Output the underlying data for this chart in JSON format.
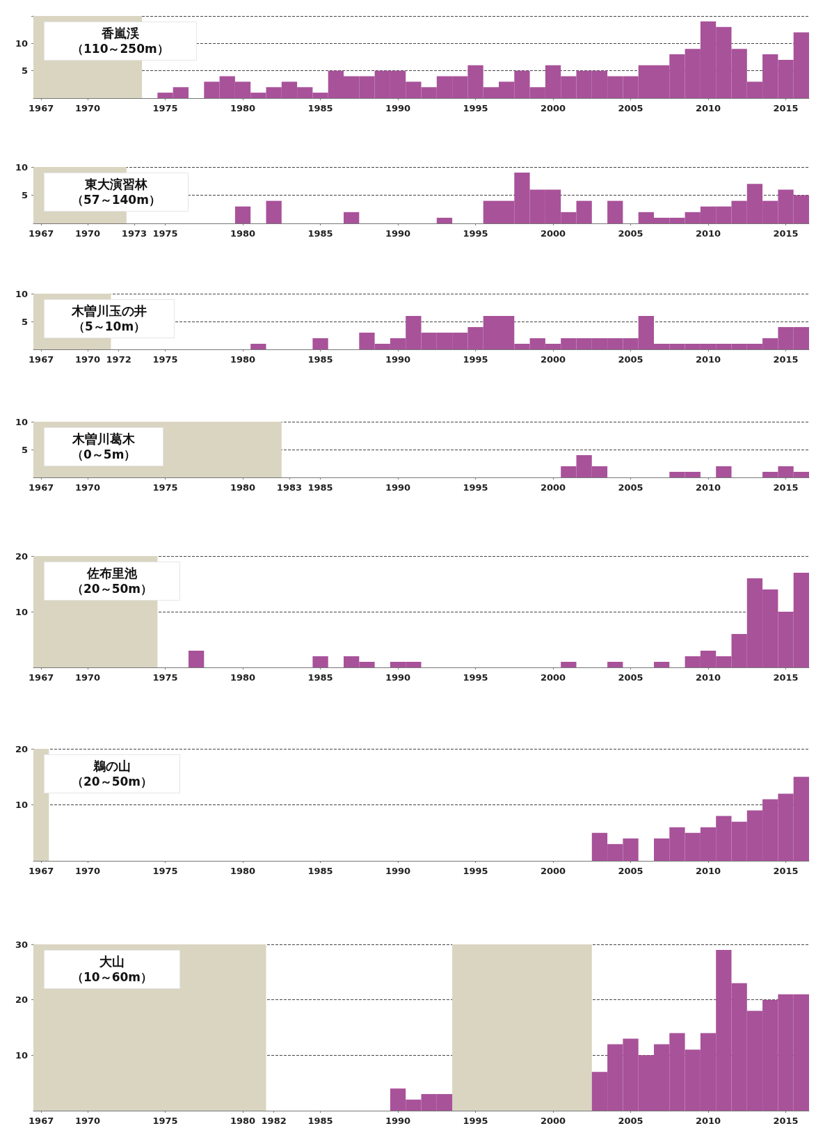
{
  "chart_data": [
    {
      "type": "bar",
      "title": "香嵐渓",
      "subtitle": "（110～250m）",
      "color": "#a8529a",
      "x": [
        1975,
        1976,
        1978,
        1979,
        1980,
        1981,
        1982,
        1983,
        1984,
        1985,
        1986,
        1987,
        1988,
        1989,
        1990,
        1991,
        1992,
        1993,
        1994,
        1995,
        1996,
        1997,
        1998,
        1999,
        2000,
        2001,
        2002,
        2003,
        2004,
        2005,
        2006,
        2007,
        2008,
        2009,
        2010,
        2011,
        2012,
        2013,
        2014,
        2015,
        2016
      ],
      "values": [
        1,
        2,
        3,
        4,
        3,
        1,
        2,
        3,
        2,
        1,
        5,
        4,
        4,
        5,
        5,
        3,
        2,
        4,
        4,
        6,
        2,
        3,
        5,
        2,
        6,
        4,
        5,
        5,
        4,
        4,
        6,
        6,
        8,
        9,
        14,
        13,
        9,
        3,
        8,
        7,
        12
      ],
      "xlim": [
        1966.5,
        2016.5
      ],
      "xticks": [
        1967,
        1970,
        1975,
        1980,
        1985,
        1990,
        1995,
        2000,
        2005,
        2010,
        2015
      ],
      "ylim": [
        0,
        15
      ],
      "yticks": [
        5,
        10,
        {
          "value": 15,
          "label": null
        }
      ],
      "grid": "y",
      "bands": [
        {
          "axis": "x",
          "from": 1966.5,
          "to": 1973.5,
          "color": "#d9d5c1"
        }
      ]
    },
    {
      "type": "bar",
      "title": "東大演習林",
      "subtitle": "（57～140m）",
      "color": "#a8529a",
      "x": [
        1980,
        1982,
        1987,
        1993,
        1996,
        1997,
        1998,
        1999,
        2000,
        2001,
        2002,
        2004,
        2006,
        2007,
        2008,
        2009,
        2010,
        2011,
        2012,
        2013,
        2014,
        2015,
        2016
      ],
      "values": [
        3,
        4,
        2,
        1,
        4,
        4,
        9,
        6,
        6,
        2,
        4,
        4,
        2,
        1,
        1,
        2,
        3,
        3,
        4,
        7,
        4,
        6,
        5
      ],
      "xlim": [
        1966.5,
        2016.5
      ],
      "xticks": [
        1967,
        1970,
        1973,
        1975,
        1980,
        1985,
        1990,
        1995,
        2000,
        2005,
        2010,
        2015
      ],
      "ylim": [
        0,
        10
      ],
      "yticks": [
        5,
        10
      ],
      "grid": "y",
      "bands": [
        {
          "axis": "x",
          "from": 1966.5,
          "to": 1972.5,
          "color": "#d9d5c1"
        }
      ]
    },
    {
      "type": "bar",
      "title": "木曽川玉の井",
      "subtitle": "（5～10m）",
      "color": "#a8529a",
      "x": [
        1981,
        1985,
        1988,
        1989,
        1990,
        1991,
        1992,
        1993,
        1994,
        1995,
        1996,
        1997,
        1998,
        1999,
        2000,
        2001,
        2002,
        2003,
        2004,
        2005,
        2006,
        2007,
        2008,
        2009,
        2010,
        2011,
        2012,
        2013,
        2014,
        2015,
        2016
      ],
      "values": [
        1,
        2,
        3,
        1,
        2,
        6,
        3,
        3,
        3,
        4,
        6,
        6,
        1,
        2,
        1,
        2,
        2,
        2,
        2,
        2,
        6,
        1,
        1,
        1,
        1,
        1,
        1,
        1,
        2,
        4,
        4
      ],
      "xlim": [
        1966.5,
        2016.5
      ],
      "xticks": [
        1967,
        1970,
        1972,
        1975,
        1980,
        1985,
        1990,
        1995,
        2000,
        2005,
        2010,
        2015
      ],
      "ylim": [
        0,
        10
      ],
      "yticks": [
        5,
        10
      ],
      "grid": "y",
      "bands": [
        {
          "axis": "x",
          "from": 1966.5,
          "to": 1971.5,
          "color": "#d9d5c1"
        }
      ]
    },
    {
      "type": "bar",
      "title": "木曽川葛木",
      "subtitle": "（0～5m）",
      "color": "#a8529a",
      "x": [
        2001,
        2002,
        2003,
        2008,
        2009,
        2011,
        2014,
        2015,
        2016
      ],
      "values": [
        2,
        4,
        2,
        1,
        1,
        2,
        1,
        2,
        1
      ],
      "xlim": [
        1966.5,
        2016.5
      ],
      "xticks": [
        1967,
        1970,
        1975,
        1980,
        1983,
        1985,
        1990,
        1995,
        2000,
        2005,
        2010,
        2015
      ],
      "ylim": [
        0,
        10
      ],
      "yticks": [
        5,
        10
      ],
      "grid": "y",
      "bands": [
        {
          "axis": "x",
          "from": 1966.5,
          "to": 1982.5,
          "color": "#d9d5c1"
        }
      ]
    },
    {
      "type": "bar",
      "title": "佐布里池",
      "subtitle": "（20～50m）",
      "color": "#a8529a",
      "x": [
        1977,
        1985,
        1987,
        1988,
        1990,
        1991,
        2001,
        2004,
        2007,
        2009,
        2010,
        2011,
        2012,
        2013,
        2014,
        2015,
        2016
      ],
      "values": [
        3,
        2,
        2,
        1,
        1,
        1,
        1,
        1,
        1,
        2,
        3,
        2,
        6,
        16,
        14,
        10,
        17
      ],
      "xlim": [
        1966.5,
        2016.5
      ],
      "xticks": [
        1967,
        1970,
        1975,
        1980,
        1985,
        1990,
        1995,
        2000,
        2005,
        2010,
        2015
      ],
      "ylim": [
        0,
        20
      ],
      "yticks": [
        10,
        20
      ],
      "grid": "y",
      "bands": [
        {
          "axis": "x",
          "from": 1966.5,
          "to": 1974.5,
          "color": "#d9d5c1"
        }
      ]
    },
    {
      "type": "bar",
      "title": "鵜の山",
      "subtitle": "（20～50m）",
      "color": "#a8529a",
      "x": [
        2003,
        2004,
        2005,
        2007,
        2008,
        2009,
        2010,
        2011,
        2012,
        2013,
        2014,
        2015,
        2016
      ],
      "values": [
        5,
        3,
        4,
        4,
        6,
        5,
        6,
        8,
        7,
        9,
        11,
        12,
        15
      ],
      "xlim": [
        1966.5,
        2016.5
      ],
      "xticks": [
        1967,
        1970,
        1975,
        1980,
        1985,
        1990,
        1995,
        2000,
        2005,
        2010,
        2015
      ],
      "ylim": [
        0,
        20
      ],
      "yticks": [
        10,
        20
      ],
      "grid": "y",
      "bands": [
        {
          "axis": "x",
          "from": 1966.5,
          "to": 1967.5,
          "color": "#d9d5c1"
        }
      ]
    },
    {
      "type": "bar",
      "title": "大山",
      "subtitle": "（10～60m）",
      "color": "#a8529a",
      "x": [
        1990,
        1991,
        1992,
        1993,
        2003,
        2004,
        2005,
        2006,
        2007,
        2008,
        2009,
        2010,
        2011,
        2012,
        2013,
        2014,
        2015,
        2016
      ],
      "values": [
        4,
        2,
        3,
        3,
        7,
        12,
        13,
        10,
        12,
        14,
        11,
        14,
        29,
        23,
        18,
        20,
        21,
        21
      ],
      "xlim": [
        1966.5,
        2016.5
      ],
      "xticks": [
        1967,
        1970,
        1975,
        1980,
        1982,
        1985,
        1990,
        1995,
        2000,
        2005,
        2010,
        2015
      ],
      "ylim": [
        0,
        30
      ],
      "yticks": [
        10,
        20,
        30
      ],
      "grid": "y",
      "bands": [
        {
          "axis": "x",
          "from": 1966.5,
          "to": 1981.5,
          "color": "#d9d5c1"
        },
        {
          "axis": "x",
          "from": 1993.5,
          "to": 2002.5,
          "color": "#d9d5c1"
        }
      ]
    }
  ]
}
